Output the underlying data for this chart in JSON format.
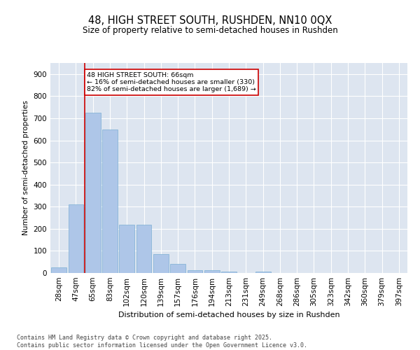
{
  "title": "48, HIGH STREET SOUTH, RUSHDEN, NN10 0QX",
  "subtitle": "Size of property relative to semi-detached houses in Rushden",
  "xlabel": "Distribution of semi-detached houses by size in Rushden",
  "ylabel": "Number of semi-detached properties",
  "categories": [
    "28sqm",
    "47sqm",
    "65sqm",
    "83sqm",
    "102sqm",
    "120sqm",
    "139sqm",
    "157sqm",
    "176sqm",
    "194sqm",
    "213sqm",
    "231sqm",
    "249sqm",
    "268sqm",
    "286sqm",
    "305sqm",
    "323sqm",
    "342sqm",
    "360sqm",
    "379sqm",
    "397sqm"
  ],
  "values": [
    25,
    310,
    725,
    650,
    220,
    220,
    85,
    40,
    12,
    12,
    7,
    0,
    5,
    0,
    0,
    0,
    0,
    0,
    0,
    0,
    0
  ],
  "bar_color": "#aec6e8",
  "bar_edge_color": "#7bafd4",
  "vline_x_idx": 2,
  "vline_color": "#cc0000",
  "annotation_lines": [
    "48 HIGH STREET SOUTH: 66sqm",
    "← 16% of semi-detached houses are smaller (330)",
    "82% of semi-detached houses are larger (1,689) →"
  ],
  "annotation_box_color": "#cc0000",
  "ylim": [
    0,
    950
  ],
  "yticks": [
    0,
    100,
    200,
    300,
    400,
    500,
    600,
    700,
    800,
    900
  ],
  "background_color": "#dde5f0",
  "footer_line1": "Contains HM Land Registry data © Crown copyright and database right 2025.",
  "footer_line2": "Contains public sector information licensed under the Open Government Licence v3.0."
}
